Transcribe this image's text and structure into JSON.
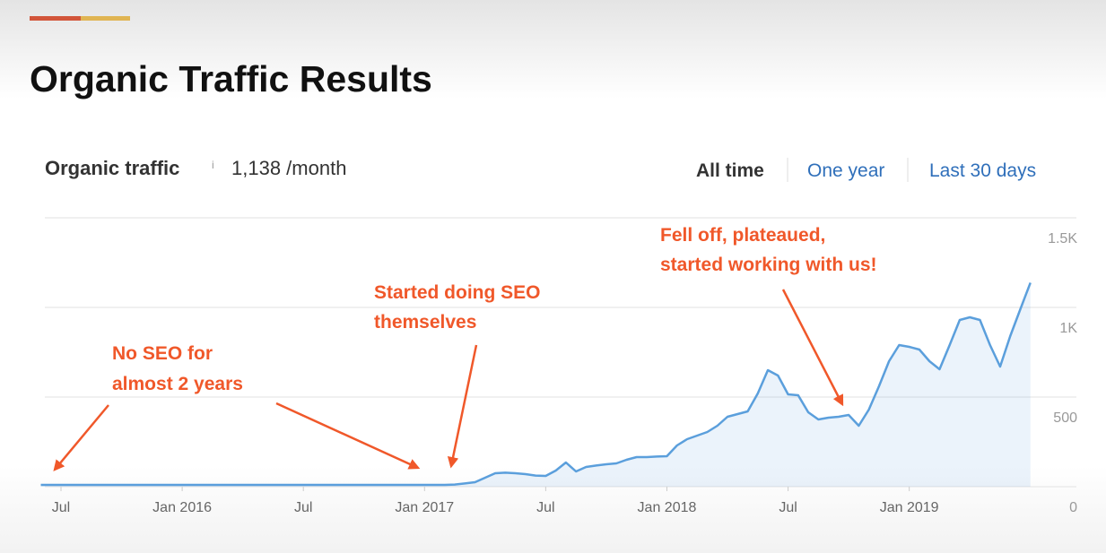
{
  "slide_title": "Organic Traffic Results",
  "chart_data": {
    "type": "area-line",
    "title": "Organic traffic",
    "info_icon": "i",
    "summary": "1,138 /month",
    "tabs": [
      "All time",
      "One year",
      "Last 30 days"
    ],
    "annotations": [
      {
        "lines": [
          "No SEO for",
          "almost 2 years"
        ]
      },
      {
        "lines": [
          "Started doing SEO",
          "themselves"
        ]
      },
      {
        "lines": [
          "Fell off, plateaued,",
          "started working with us!"
        ]
      }
    ],
    "color": "#5b9fdc",
    "categories": [
      null,
      null,
      "Jul",
      null,
      null,
      null,
      null,
      null,
      null,
      null,
      null,
      null,
      null,
      null,
      "Jan 2016",
      null,
      null,
      null,
      null,
      null,
      null,
      null,
      null,
      null,
      null,
      null,
      "Jul",
      null,
      null,
      null,
      null,
      null,
      null,
      null,
      null,
      null,
      null,
      null,
      "Jan 2017",
      null,
      null,
      null,
      null,
      null,
      null,
      null,
      null,
      null,
      null,
      null,
      "Jul",
      null,
      null,
      null,
      null,
      null,
      null,
      null,
      null,
      null,
      null,
      null,
      "Jan 2018",
      null,
      null,
      null,
      null,
      null,
      null,
      null,
      null,
      null,
      null,
      null,
      "Jul",
      null,
      null,
      null,
      null,
      null,
      null,
      null,
      null,
      null,
      null,
      null,
      "Jan 2019",
      null,
      null,
      null,
      null,
      null,
      null,
      null,
      null,
      null,
      null,
      null,
      null
    ],
    "values": [
      10,
      10,
      10,
      10,
      10,
      10,
      10,
      10,
      10,
      10,
      10,
      10,
      10,
      10,
      10,
      10,
      10,
      10,
      10,
      10,
      10,
      10,
      10,
      10,
      10,
      10,
      10,
      10,
      10,
      10,
      10,
      10,
      10,
      10,
      10,
      10,
      10,
      10,
      10,
      10,
      10,
      12,
      18,
      25,
      50,
      75,
      78,
      75,
      70,
      62,
      60,
      90,
      135,
      85,
      110,
      118,
      125,
      130,
      150,
      165,
      165,
      168,
      170,
      230,
      265,
      285,
      305,
      340,
      390,
      405,
      420,
      520,
      650,
      620,
      515,
      510,
      415,
      375,
      385,
      390,
      400,
      340,
      430,
      560,
      700,
      790,
      780,
      765,
      700,
      655,
      790,
      930,
      945,
      930,
      790,
      670,
      840,
      990,
      1138
    ],
    "ylim": [
      0,
      1500
    ],
    "yticks": [
      0,
      500,
      {
        "value": 1000,
        "label": "1K"
      },
      {
        "value": 1500,
        "label": "1.5K"
      }
    ],
    "grid": true
  }
}
